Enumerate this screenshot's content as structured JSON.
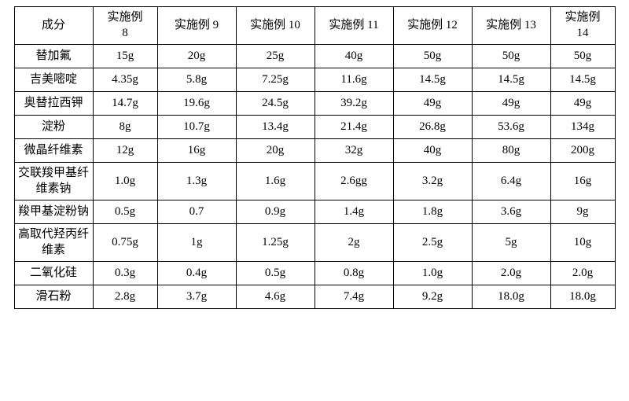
{
  "table": {
    "columns": [
      "成分",
      "实施例\n8",
      "实施例 9",
      "实施例 10",
      "实施例 11",
      "实施例 12",
      "实施例 13",
      "实施例\n14"
    ],
    "rows": [
      [
        "替加氟",
        "15g",
        "20g",
        "25g",
        "40g",
        "50g",
        "50g",
        "50g"
      ],
      [
        "吉美嘧啶",
        "4.35g",
        "5.8g",
        "7.25g",
        "11.6g",
        "14.5g",
        "14.5g",
        "14.5g"
      ],
      [
        "奥替拉西钾",
        "14.7g",
        "19.6g",
        "24.5g",
        "39.2g",
        "49g",
        "49g",
        "49g"
      ],
      [
        "淀粉",
        "8g",
        "10.7g",
        "13.4g",
        "21.4g",
        "26.8g",
        "53.6g",
        "134g"
      ],
      [
        "微晶纤维素",
        "12g",
        "16g",
        "20g",
        "32g",
        "40g",
        "80g",
        "200g"
      ],
      [
        "交联羧甲基纤\n维素钠",
        "1.0g",
        "1.3g",
        "1.6g",
        "2.6gg",
        "3.2g",
        "6.4g",
        "16g"
      ],
      [
        "羧甲基淀粉钠",
        "0.5g",
        "0.7",
        "0.9g",
        "1.4g",
        "1.8g",
        "3.6g",
        "9g"
      ],
      [
        "高取代羟丙纤\n维素",
        "0.75g",
        "1g",
        "1.25g",
        "2g",
        "2.5g",
        "5g",
        "10g"
      ],
      [
        "二氧化硅",
        "0.3g",
        "0.4g",
        "0.5g",
        "0.8g",
        "1.0g",
        "2.0g",
        "2.0g"
      ],
      [
        "滑石粉",
        "2.8g",
        "3.7g",
        "4.6g",
        "7.4g",
        "9.2g",
        "18.0g",
        "18.0g"
      ]
    ],
    "twoLineRows": [
      5,
      7
    ]
  }
}
